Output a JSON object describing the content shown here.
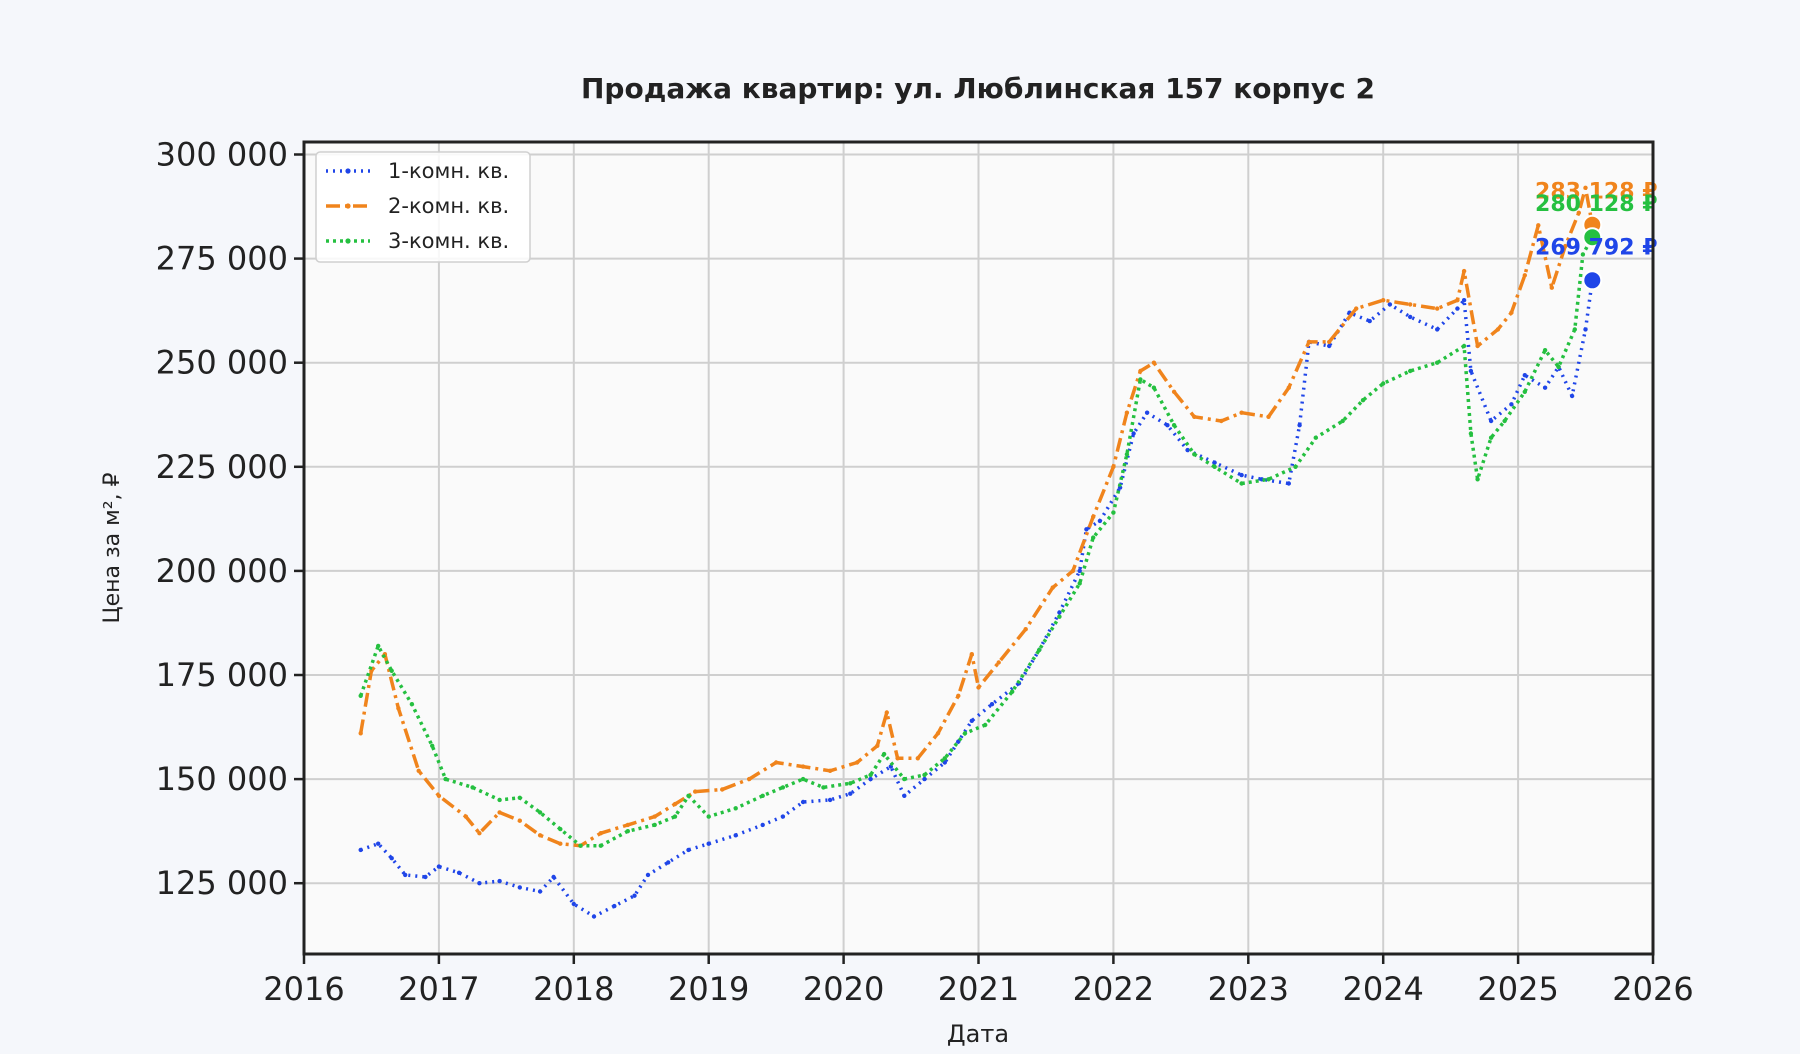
{
  "chart_data": {
    "type": "line",
    "title": "Продажа квартир: ул. Люблинская 157 корпус 2",
    "xlabel": "Дата",
    "ylabel": "Цена за м², ₽",
    "xlim": [
      2016,
      2026
    ],
    "ylim": [
      108000,
      303000
    ],
    "x_ticks": [
      "2016",
      "2017",
      "2018",
      "2019",
      "2020",
      "2021",
      "2022",
      "2023",
      "2024",
      "2025",
      "2026"
    ],
    "y_ticks": [
      "125 000",
      "150 000",
      "175 000",
      "200 000",
      "225 000",
      "250 000",
      "275 000",
      "300 000"
    ],
    "grid": true,
    "legend_position": "top-left",
    "series": [
      {
        "name": "1-комн. кв.",
        "color": "#1f45e8",
        "dash": "2 5",
        "last_label": "269 792 ₽",
        "last_point": [
          2025.55,
          269792
        ],
        "points": [
          [
            2016.42,
            133000
          ],
          [
            2016.55,
            134500
          ],
          [
            2016.65,
            131000
          ],
          [
            2016.75,
            127000
          ],
          [
            2016.9,
            126500
          ],
          [
            2017.0,
            129000
          ],
          [
            2017.15,
            127500
          ],
          [
            2017.3,
            125000
          ],
          [
            2017.45,
            125500
          ],
          [
            2017.6,
            124000
          ],
          [
            2017.75,
            123000
          ],
          [
            2017.85,
            126500
          ],
          [
            2018.0,
            120000
          ],
          [
            2018.15,
            117000
          ],
          [
            2018.3,
            119500
          ],
          [
            2018.45,
            122000
          ],
          [
            2018.55,
            127000
          ],
          [
            2018.7,
            130000
          ],
          [
            2018.85,
            133000
          ],
          [
            2019.0,
            134500
          ],
          [
            2019.2,
            136500
          ],
          [
            2019.4,
            139000
          ],
          [
            2019.55,
            141000
          ],
          [
            2019.7,
            144500
          ],
          [
            2019.9,
            145000
          ],
          [
            2020.05,
            146500
          ],
          [
            2020.2,
            150000
          ],
          [
            2020.35,
            153000
          ],
          [
            2020.45,
            146000
          ],
          [
            2020.6,
            150000
          ],
          [
            2020.75,
            154000
          ],
          [
            2020.85,
            159000
          ],
          [
            2020.95,
            164000
          ],
          [
            2021.1,
            168000
          ],
          [
            2021.3,
            173000
          ],
          [
            2021.45,
            181000
          ],
          [
            2021.6,
            190000
          ],
          [
            2021.75,
            200000
          ],
          [
            2021.8,
            210000
          ],
          [
            2021.9,
            212000
          ],
          [
            2022.05,
            220000
          ],
          [
            2022.15,
            233000
          ],
          [
            2022.25,
            238000
          ],
          [
            2022.4,
            235000
          ],
          [
            2022.55,
            229000
          ],
          [
            2022.75,
            226000
          ],
          [
            2022.95,
            223000
          ],
          [
            2023.1,
            222000
          ],
          [
            2023.3,
            221000
          ],
          [
            2023.38,
            235000
          ],
          [
            2023.45,
            255000
          ],
          [
            2023.6,
            254000
          ],
          [
            2023.75,
            262000
          ],
          [
            2023.9,
            260000
          ],
          [
            2024.05,
            264000
          ],
          [
            2024.2,
            261000
          ],
          [
            2024.4,
            258000
          ],
          [
            2024.55,
            263000
          ],
          [
            2024.6,
            265000
          ],
          [
            2024.65,
            248000
          ],
          [
            2024.8,
            236000
          ],
          [
            2024.95,
            240000
          ],
          [
            2025.05,
            247000
          ],
          [
            2025.2,
            244000
          ],
          [
            2025.3,
            249000
          ],
          [
            2025.4,
            242000
          ],
          [
            2025.5,
            258000
          ],
          [
            2025.55,
            269792
          ]
        ]
      },
      {
        "name": "2-комн. кв.",
        "color": "#f0841c",
        "dash": "14 5 3 5",
        "last_label": "283 128 ₽",
        "last_point": [
          2025.55,
          283128
        ],
        "points": [
          [
            2016.42,
            161000
          ],
          [
            2016.5,
            176000
          ],
          [
            2016.6,
            180000
          ],
          [
            2016.7,
            167000
          ],
          [
            2016.85,
            152000
          ],
          [
            2017.0,
            146000
          ],
          [
            2017.2,
            141000
          ],
          [
            2017.3,
            137000
          ],
          [
            2017.45,
            142000
          ],
          [
            2017.6,
            140000
          ],
          [
            2017.75,
            136500
          ],
          [
            2017.9,
            134500
          ],
          [
            2018.05,
            134000
          ],
          [
            2018.2,
            137000
          ],
          [
            2018.4,
            139000
          ],
          [
            2018.6,
            141000
          ],
          [
            2018.75,
            144000
          ],
          [
            2018.9,
            147000
          ],
          [
            2019.1,
            147500
          ],
          [
            2019.3,
            150000
          ],
          [
            2019.5,
            154000
          ],
          [
            2019.7,
            153000
          ],
          [
            2019.9,
            152000
          ],
          [
            2020.1,
            154000
          ],
          [
            2020.25,
            158000
          ],
          [
            2020.32,
            166000
          ],
          [
            2020.4,
            155000
          ],
          [
            2020.55,
            155000
          ],
          [
            2020.7,
            161000
          ],
          [
            2020.85,
            170000
          ],
          [
            2020.95,
            180000
          ],
          [
            2021.0,
            172000
          ],
          [
            2021.15,
            178000
          ],
          [
            2021.35,
            186000
          ],
          [
            2021.55,
            196000
          ],
          [
            2021.7,
            200000
          ],
          [
            2021.85,
            213000
          ],
          [
            2022.0,
            225000
          ],
          [
            2022.1,
            238000
          ],
          [
            2022.2,
            248000
          ],
          [
            2022.3,
            250000
          ],
          [
            2022.45,
            243000
          ],
          [
            2022.6,
            237000
          ],
          [
            2022.8,
            236000
          ],
          [
            2022.95,
            238000
          ],
          [
            2023.15,
            237000
          ],
          [
            2023.3,
            244000
          ],
          [
            2023.45,
            255000
          ],
          [
            2023.6,
            255000
          ],
          [
            2023.8,
            263000
          ],
          [
            2024.0,
            265000
          ],
          [
            2024.2,
            264000
          ],
          [
            2024.4,
            263000
          ],
          [
            2024.55,
            265000
          ],
          [
            2024.6,
            272000
          ],
          [
            2024.7,
            254000
          ],
          [
            2024.85,
            258000
          ],
          [
            2024.95,
            262000
          ],
          [
            2025.05,
            271000
          ],
          [
            2025.15,
            283000
          ],
          [
            2025.25,
            268000
          ],
          [
            2025.35,
            278000
          ],
          [
            2025.45,
            286000
          ],
          [
            2025.5,
            292000
          ],
          [
            2025.55,
            283128
          ]
        ]
      },
      {
        "name": "3-комн. кв.",
        "color": "#25c040",
        "dash": "3 4",
        "last_label": "280 128 ₽",
        "last_point": [
          2025.55,
          280128
        ],
        "points": [
          [
            2016.42,
            170000
          ],
          [
            2016.55,
            182000
          ],
          [
            2016.65,
            176000
          ],
          [
            2016.8,
            168000
          ],
          [
            2016.95,
            158000
          ],
          [
            2017.05,
            150000
          ],
          [
            2017.25,
            148000
          ],
          [
            2017.45,
            145000
          ],
          [
            2017.6,
            145500
          ],
          [
            2017.75,
            142000
          ],
          [
            2017.9,
            138000
          ],
          [
            2018.05,
            134000
          ],
          [
            2018.2,
            134000
          ],
          [
            2018.4,
            137500
          ],
          [
            2018.6,
            139000
          ],
          [
            2018.75,
            141000
          ],
          [
            2018.85,
            146000
          ],
          [
            2019.0,
            141000
          ],
          [
            2019.2,
            143000
          ],
          [
            2019.4,
            146000
          ],
          [
            2019.55,
            148000
          ],
          [
            2019.7,
            150000
          ],
          [
            2019.85,
            148000
          ],
          [
            2020.05,
            149000
          ],
          [
            2020.2,
            151000
          ],
          [
            2020.3,
            156000
          ],
          [
            2020.45,
            150000
          ],
          [
            2020.6,
            151000
          ],
          [
            2020.75,
            155000
          ],
          [
            2020.9,
            161000
          ],
          [
            2021.05,
            163000
          ],
          [
            2021.25,
            171000
          ],
          [
            2021.45,
            181000
          ],
          [
            2021.6,
            189000
          ],
          [
            2021.75,
            197000
          ],
          [
            2021.85,
            208000
          ],
          [
            2022.0,
            214000
          ],
          [
            2022.1,
            228000
          ],
          [
            2022.2,
            246000
          ],
          [
            2022.3,
            244000
          ],
          [
            2022.45,
            235000
          ],
          [
            2022.6,
            228000
          ],
          [
            2022.75,
            225000
          ],
          [
            2022.95,
            221000
          ],
          [
            2023.15,
            222000
          ],
          [
            2023.35,
            225000
          ],
          [
            2023.5,
            232000
          ],
          [
            2023.7,
            236000
          ],
          [
            2023.85,
            241000
          ],
          [
            2024.0,
            245000
          ],
          [
            2024.2,
            248000
          ],
          [
            2024.4,
            250000
          ],
          [
            2024.6,
            254000
          ],
          [
            2024.65,
            233000
          ],
          [
            2024.7,
            222000
          ],
          [
            2024.8,
            232000
          ],
          [
            2024.9,
            236000
          ],
          [
            2025.05,
            243000
          ],
          [
            2025.2,
            253000
          ],
          [
            2025.3,
            249000
          ],
          [
            2025.42,
            258000
          ],
          [
            2025.48,
            276000
          ],
          [
            2025.55,
            280128
          ]
        ]
      }
    ]
  }
}
